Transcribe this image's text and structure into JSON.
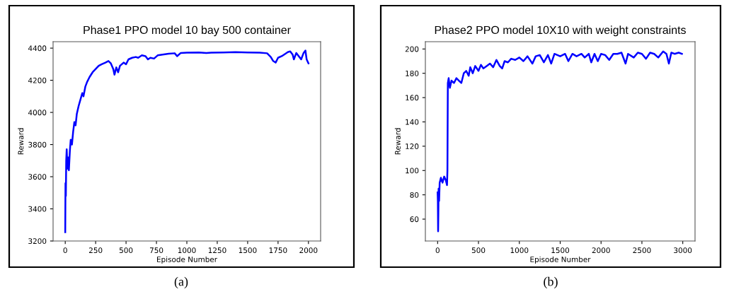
{
  "chart_data": [
    {
      "type": "line",
      "title": "Phase1 PPO model 10 bay 500 container",
      "xlabel": "Episode Number",
      "ylabel": "Reward",
      "annotations": [
        "(a)"
      ],
      "series": [
        {
          "color": "#0000ff",
          "x": [
            0,
            2,
            5,
            8,
            12,
            18,
            25,
            30,
            38,
            45,
            55,
            65,
            75,
            85,
            95,
            110,
            125,
            140,
            150,
            165,
            180,
            200,
            225,
            250,
            275,
            300,
            330,
            355,
            375,
            395,
            405,
            420,
            435,
            450,
            480,
            500,
            520,
            550,
            580,
            600,
            630,
            660,
            680,
            700,
            730,
            760,
            800,
            850,
            900,
            920,
            950,
            1000,
            1100,
            1160,
            1200,
            1300,
            1400,
            1500,
            1600,
            1660,
            1690,
            1710,
            1730,
            1750,
            1780,
            1800,
            1830,
            1850,
            1870,
            1880,
            1900,
            1920,
            1940,
            1960,
            1975,
            1985,
            2000
          ],
          "values": [
            3255,
            3560,
            3480,
            3700,
            3770,
            3650,
            3720,
            3640,
            3760,
            3830,
            3800,
            3880,
            3940,
            3920,
            3990,
            4040,
            4080,
            4120,
            4100,
            4160,
            4190,
            4220,
            4250,
            4270,
            4290,
            4300,
            4310,
            4320,
            4305,
            4270,
            4235,
            4280,
            4250,
            4290,
            4310,
            4300,
            4330,
            4340,
            4345,
            4340,
            4355,
            4350,
            4330,
            4340,
            4335,
            4355,
            4360,
            4365,
            4368,
            4350,
            4370,
            4372,
            4373,
            4370,
            4372,
            4373,
            4375,
            4373,
            4372,
            4368,
            4345,
            4320,
            4310,
            4340,
            4350,
            4360,
            4375,
            4380,
            4360,
            4330,
            4370,
            4350,
            4330,
            4370,
            4385,
            4330,
            4305
          ]
        }
      ],
      "xlim": [
        -100,
        2100
      ],
      "ylim": [
        3200,
        4440
      ],
      "xticks": [
        0,
        250,
        500,
        750,
        1000,
        1250,
        1500,
        1750,
        2000
      ],
      "yticks": [
        3200,
        3400,
        3600,
        3800,
        4000,
        4200,
        4400
      ],
      "grid": false
    },
    {
      "type": "line",
      "title": "Phase2 PPO model 10X10 with weight constraints",
      "xlabel": "Episode Number",
      "ylabel": "Reward",
      "annotations": [
        "(b)"
      ],
      "series": [
        {
          "color": "#0000ff",
          "x": [
            0,
            3,
            6,
            9,
            12,
            18,
            25,
            40,
            60,
            80,
            100,
            115,
            120,
            125,
            135,
            150,
            170,
            200,
            230,
            260,
            290,
            320,
            350,
            380,
            400,
            430,
            460,
            500,
            530,
            560,
            600,
            640,
            680,
            720,
            760,
            790,
            820,
            860,
            900,
            950,
            1000,
            1050,
            1100,
            1160,
            1200,
            1250,
            1300,
            1350,
            1390,
            1430,
            1500,
            1560,
            1600,
            1650,
            1700,
            1760,
            1800,
            1850,
            1880,
            1920,
            1960,
            2000,
            2050,
            2100,
            2150,
            2200,
            2250,
            2300,
            2330,
            2400,
            2450,
            2500,
            2550,
            2600,
            2650,
            2700,
            2760,
            2800,
            2830,
            2860,
            2900,
            2950,
            2990
          ],
          "values": [
            82,
            75,
            50,
            65,
            85,
            75,
            90,
            94,
            90,
            95,
            92,
            88,
            100,
            172,
            176,
            168,
            174,
            172,
            176,
            174,
            172,
            180,
            182,
            178,
            185,
            180,
            186,
            182,
            187,
            184,
            186,
            188,
            185,
            191,
            186,
            184,
            190,
            189,
            192,
            191,
            193,
            190,
            194,
            188,
            194,
            195,
            189,
            195,
            188,
            196,
            194,
            196,
            190,
            196,
            194,
            196,
            193,
            196,
            189,
            196,
            190,
            196,
            195,
            191,
            196,
            196,
            197,
            188,
            196,
            193,
            197,
            196,
            192,
            197,
            196,
            193,
            198,
            196,
            188,
            197,
            196,
            197,
            196
          ]
        }
      ],
      "xlim": [
        -150,
        3150
      ],
      "ylim": [
        42,
        206
      ],
      "xticks": [
        0,
        500,
        1000,
        1500,
        2000,
        2500,
        3000
      ],
      "yticks": [
        60,
        80,
        100,
        120,
        140,
        160,
        180,
        200
      ],
      "grid": false
    }
  ]
}
